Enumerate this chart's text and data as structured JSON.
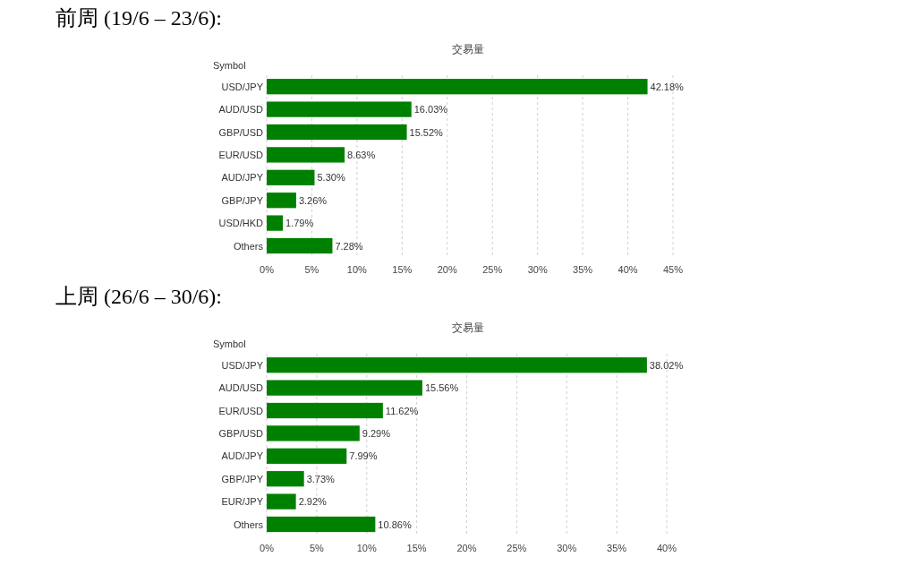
{
  "chart_data": [
    {
      "type": "bar",
      "orientation": "horizontal",
      "title": "前周 (19/6 – 23/6):",
      "subtitle": "交易量",
      "ylabel": "Symbol",
      "categories": [
        "USD/JPY",
        "AUD/USD",
        "GBP/USD",
        "EUR/USD",
        "AUD/JPY",
        "GBP/JPY",
        "USD/HKD",
        "Others"
      ],
      "values": [
        42.18,
        16.03,
        15.52,
        8.63,
        5.3,
        3.26,
        1.79,
        7.28
      ],
      "value_labels": [
        "42.18%",
        "16.03%",
        "15.52%",
        "8.63%",
        "5.30%",
        "3.26%",
        "1.79%",
        "7.28%"
      ],
      "color": "#008000",
      "xlim": [
        0,
        45
      ],
      "xticks": [
        {
          "value": 0,
          "label": "0%"
        },
        {
          "value": 5,
          "label": "5%"
        },
        {
          "value": 10,
          "label": "10%"
        },
        {
          "value": 15,
          "label": "15%"
        },
        {
          "value": 20,
          "label": "20%"
        },
        {
          "value": 25,
          "label": "25%"
        },
        {
          "value": 30,
          "label": "30%"
        },
        {
          "value": 35,
          "label": "35%"
        },
        {
          "value": 40,
          "label": "40%"
        },
        {
          "value": 45,
          "label": "45%"
        }
      ],
      "grid": "x"
    },
    {
      "type": "bar",
      "orientation": "horizontal",
      "title": "上周 (26/6 – 30/6):",
      "subtitle": "交易量",
      "ylabel": "Symbol",
      "categories": [
        "USD/JPY",
        "AUD/USD",
        "EUR/USD",
        "GBP/USD",
        "AUD/JPY",
        "GBP/JPY",
        "EUR/JPY",
        "Others"
      ],
      "values": [
        38.02,
        15.56,
        11.62,
        9.29,
        7.99,
        3.73,
        2.92,
        10.86
      ],
      "value_labels": [
        "38.02%",
        "15.56%",
        "11.62%",
        "9.29%",
        "7.99%",
        "3.73%",
        "2.92%",
        "10.86%"
      ],
      "color": "#008000",
      "xlim": [
        0,
        40
      ],
      "xticks": [
        {
          "value": 0,
          "label": "0%"
        },
        {
          "value": 5,
          "label": "5%"
        },
        {
          "value": 10,
          "label": "10%"
        },
        {
          "value": 15,
          "label": "15%"
        },
        {
          "value": 20,
          "label": "20%"
        },
        {
          "value": 25,
          "label": "25%"
        },
        {
          "value": 30,
          "label": "30%"
        },
        {
          "value": 35,
          "label": "35%"
        },
        {
          "value": 40,
          "label": "40%"
        }
      ],
      "grid": "x"
    }
  ]
}
